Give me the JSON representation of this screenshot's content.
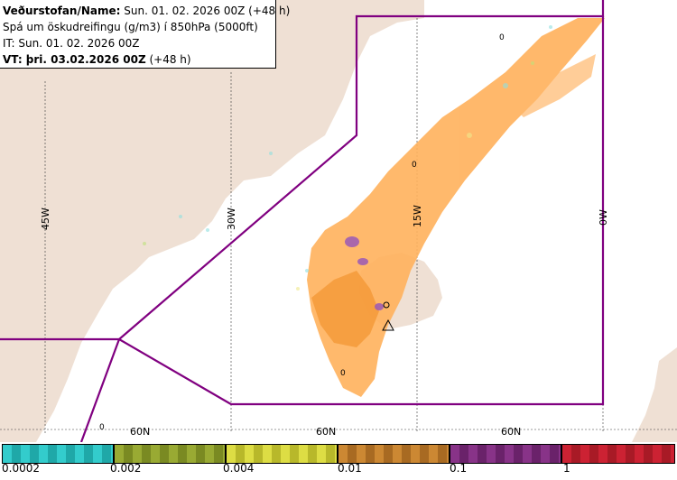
{
  "info": {
    "line1_bold": "Veðurstofan/Name:",
    "line1_rest": " Sun. 01. 02. 2026 00Z (+48 h)",
    "line2": "Spá um öskudreifingu (g/m3) í 850hPa (5000ft)",
    "line3": "IT: Sun. 01. 02. 2026 00Z",
    "line4_bold": "VT: þri. 03.02.2026 00Z",
    "line4_rest": " (+48 h)"
  },
  "grid_labels": {
    "lon_45w": "45W",
    "lon_30w": "30W",
    "lon_15w": "15W",
    "lon_0w": "0W",
    "lat_left": "60N",
    "lat_mid": "60N",
    "lat_right": "60N"
  },
  "markers": {
    "zero_top": "0",
    "zero_mid": "0",
    "zero_south": "0",
    "zero_sw": "0"
  },
  "legend": {
    "ticks": [
      "0.0002",
      "0.002",
      "0.004",
      "0.01",
      "0.1",
      "1"
    ],
    "colors": [
      "#33cccc",
      "#99aa33",
      "#cccc33",
      "#cc8833",
      "#883388",
      "#cc2233"
    ]
  },
  "colors": {
    "land": "#efe0d4",
    "ocean": "#ffffff",
    "ash": "#ffb15c",
    "boundary": "#800080"
  }
}
